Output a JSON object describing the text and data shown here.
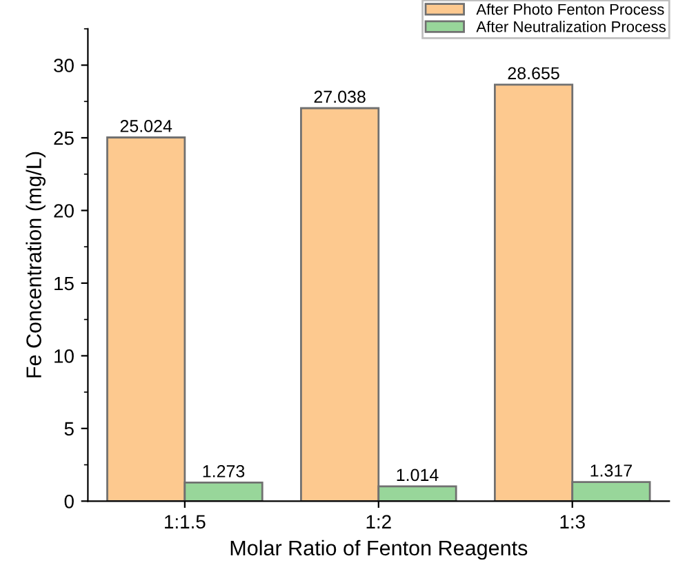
{
  "chart_data": {
    "type": "bar",
    "xlabel": "Molar Ratio of Fenton Reagents",
    "ylabel": "Fe Concentration (mg/L)",
    "categories": [
      "1:1.5",
      "1:2",
      "1:3"
    ],
    "series": [
      {
        "name": "After Photo Fenton Process",
        "color": "#fdc98f",
        "values": [
          25.024,
          27.038,
          28.655
        ]
      },
      {
        "name": "After Neutralization Process",
        "color": "#98d69a",
        "values": [
          1.273,
          1.014,
          1.317
        ]
      }
    ],
    "ylim": [
      0,
      32.5
    ],
    "yticks": [
      0,
      5,
      10,
      15,
      20,
      25,
      30
    ],
    "grid": false,
    "legend": "top right",
    "data_labels": true
  }
}
